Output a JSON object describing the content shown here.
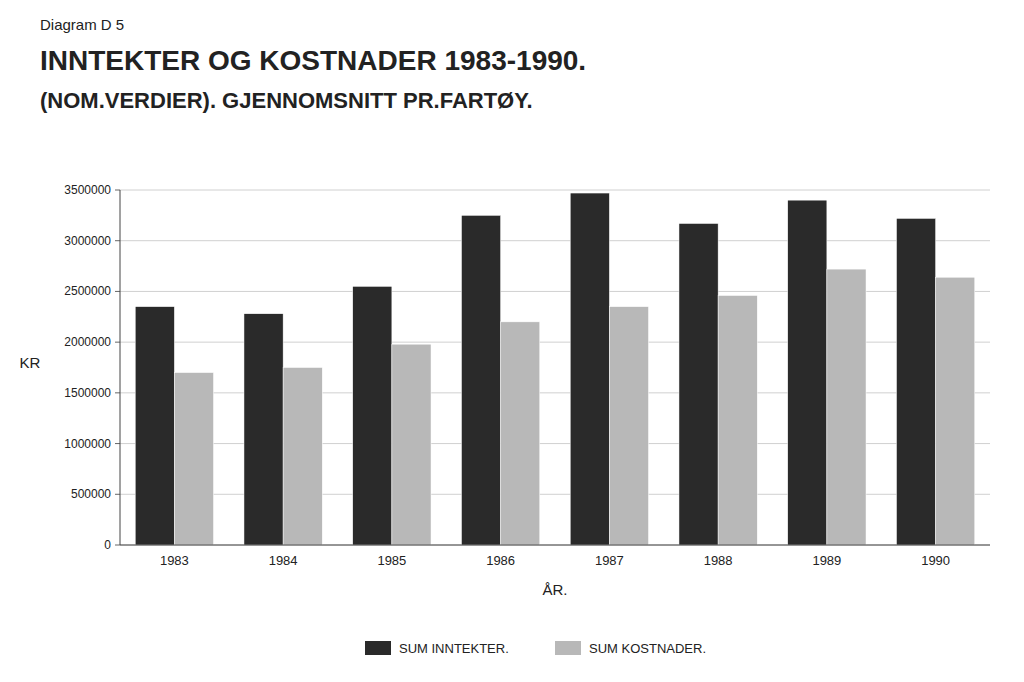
{
  "chart_data": {
    "type": "bar",
    "title": "INNTEKTER OG KOSTNADER 1983-1990.",
    "subtitle": "(NOM.VERDIER). GJENNOMSNITT PR.FARTØY.",
    "annotations": [
      "Diagram D 5"
    ],
    "x_label": "ÅR.",
    "y_label": "KR",
    "categories": [
      "1983",
      "1984",
      "1985",
      "1986",
      "1987",
      "1988",
      "1989",
      "1990"
    ],
    "series": [
      {
        "name": "SUM INNTEKTER.",
        "color": "#2a2a2a",
        "values": [
          2350000,
          2280000,
          2550000,
          3250000,
          3470000,
          3170000,
          3400000,
          3220000
        ]
      },
      {
        "name": "SUM KOSTNADER.",
        "color": "#b8b8b8",
        "values": [
          1700000,
          1750000,
          1980000,
          2200000,
          2350000,
          2460000,
          2720000,
          2640000
        ]
      }
    ],
    "ylim": [
      0,
      3500000
    ],
    "yticks": [
      0,
      500000,
      1000000,
      1500000,
      2000000,
      2500000,
      3000000,
      3500000
    ],
    "grid": true,
    "legend": "bottom"
  }
}
